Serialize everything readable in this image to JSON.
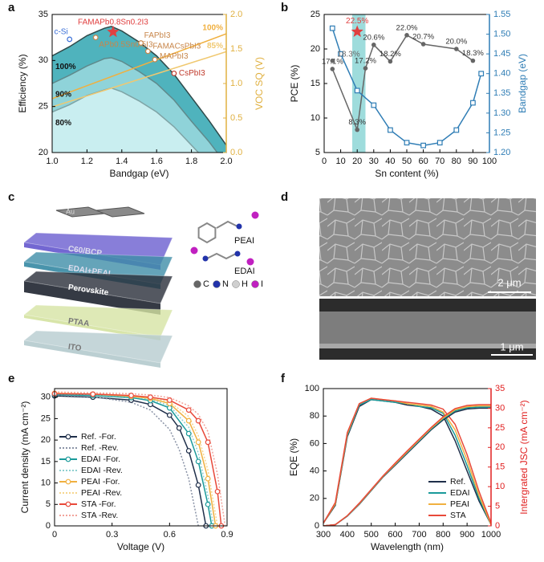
{
  "panel_labels": [
    "a",
    "b",
    "c",
    "d",
    "e",
    "f"
  ],
  "diagram": {
    "layers": [
      "Au",
      "C60/BCP",
      "EDAI+PEAI",
      "Perovskite",
      "PTAA",
      "ITO"
    ],
    "molecules": [
      "PEAI",
      "EDAI"
    ],
    "atoms": [
      "C",
      "N",
      "H",
      "I"
    ]
  },
  "micrograph": {
    "scale_bars": [
      "2 μm",
      "1 μm"
    ]
  },
  "chart_data": [
    {
      "type": "line",
      "xlabel": "Bandgap (eV)",
      "ylabel": "Efficiency (%)",
      "y2label": "VOC SQ (V)",
      "y2color": "#e0b040",
      "xlim": [
        1.0,
        2.0
      ],
      "xticks": [
        {
          "value": 1,
          "label": "1.0"
        },
        1.2,
        1.4,
        1.6,
        1.8,
        {
          "value": 2,
          "label": "2.0"
        }
      ],
      "ylim": [
        20,
        35
      ],
      "yticks": [
        20,
        25,
        30,
        35
      ],
      "y2lim": [
        0,
        2
      ],
      "y2ticks": [
        {
          "value": 0,
          "label": "0.0"
        },
        0.5,
        {
          "value": 1,
          "label": "1.0"
        },
        1.5,
        {
          "value": 2,
          "label": "2.0"
        }
      ],
      "series": [
        {
          "label": "100%",
          "color": "#2f4a4a",
          "fill": "#4fb3bd",
          "x": [
            1.0,
            1.1,
            1.2,
            1.3,
            1.34,
            1.4,
            1.5,
            1.6,
            1.7,
            1.8,
            1.9,
            2.0
          ],
          "values": [
            30.5,
            31.5,
            32.7,
            33.5,
            33.7,
            33.2,
            32.0,
            30.5,
            28.5,
            26.0,
            23.5,
            20.8
          ]
        },
        {
          "label": "90%",
          "color": "#5f8a8c",
          "fill": "#8fd3d9",
          "x": [
            1.0,
            1.1,
            1.2,
            1.3,
            1.34,
            1.4,
            1.5,
            1.6,
            1.7,
            1.8,
            1.9,
            2.0
          ],
          "values": [
            27.5,
            28.4,
            29.4,
            30.2,
            30.3,
            29.9,
            28.8,
            27.5,
            25.7,
            23.4,
            21.2,
            18.7
          ]
        },
        {
          "label": "80%",
          "color": "#7fa4a6",
          "fill": "#c9eef0",
          "x": [
            1.0,
            1.1,
            1.2,
            1.3,
            1.34,
            1.4,
            1.5,
            1.6,
            1.7,
            1.8,
            1.9,
            2.0
          ],
          "values": [
            24.4,
            25.2,
            26.2,
            26.8,
            27.0,
            26.6,
            25.6,
            24.4,
            22.8,
            20.8,
            18.8,
            16.6
          ]
        },
        {
          "label": "100%",
          "color": "#f0b040",
          "axis": "y2",
          "x": [
            1.0,
            2.0
          ],
          "values": [
            0.78,
            1.72
          ]
        },
        {
          "label": "85%",
          "color": "#f0c870",
          "axis": "y2",
          "x": [
            1.0,
            2.0
          ],
          "values": [
            0.66,
            1.46
          ]
        }
      ],
      "points": [
        {
          "label": "c-Si",
          "x": 1.1,
          "y": 32.3,
          "color": "#3a6fd8",
          "marker": "open-circle"
        },
        {
          "label": "FAMAPb0.8Sn0.2I3",
          "x": 1.35,
          "y": 33.1,
          "color": "#e04040",
          "marker": "star"
        },
        {
          "label": "APb0.5Sn0.5I3",
          "x": 1.25,
          "y": 32.5,
          "color": "#c8864a",
          "marker": "open-circle"
        },
        {
          "label": "FAPbI3",
          "x": 1.51,
          "y": 31.9,
          "color": "#c8864a",
          "marker": "open-circle"
        },
        {
          "label": "FAMACsPbI3",
          "x": 1.55,
          "y": 31.0,
          "color": "#c8864a",
          "marker": "open-circle"
        },
        {
          "label": "MAPbI3",
          "x": 1.59,
          "y": 30.1,
          "color": "#c8864a",
          "marker": "open-circle"
        },
        {
          "label": "CsPbI3",
          "x": 1.7,
          "y": 28.6,
          "color": "#c0392b",
          "marker": "open-circle"
        }
      ]
    },
    {
      "type": "line",
      "xlabel": "Sn content (%)",
      "ylabel": "PCE (%)",
      "y2label": "Bandgap (eV)",
      "y2color": "#2f7db5",
      "xlim": [
        0,
        100
      ],
      "xticks": [
        0,
        10,
        20,
        30,
        40,
        50,
        60,
        70,
        80,
        90,
        100
      ],
      "ylim": [
        5,
        25
      ],
      "yticks": [
        5,
        10,
        15,
        20,
        25
      ],
      "y2lim": [
        1.2,
        1.55
      ],
      "y2ticks": [
        {
          "value": 1.2,
          "label": "1.20"
        },
        1.25,
        {
          "value": 1.3,
          "label": "1.30"
        },
        1.35,
        {
          "value": 1.4,
          "label": "1.40"
        },
        1.45,
        {
          "value": 1.5,
          "label": "1.50"
        },
        1.55
      ],
      "highlight_band": [
        17,
        25
      ],
      "highlight_color": "#86d3d3",
      "series": [
        {
          "color": "#666666",
          "marker": "circle",
          "x": [
            5,
            20,
            25,
            30,
            40,
            50,
            60,
            80,
            90
          ],
          "values": [
            17.1,
            8.3,
            17.2,
            20.6,
            18.2,
            22.0,
            20.7,
            20.0,
            18.3
          ],
          "value_labels": [
            "17.1%",
            "8.3%",
            "17.2%",
            "20.6%",
            "18.2%",
            "22.0%",
            "20.7%",
            "20.0%",
            "18.3%"
          ]
        },
        {
          "color": "#2f7db5",
          "marker": "square",
          "axis": "y2",
          "x": [
            5,
            10,
            20,
            30,
            40,
            50,
            60,
            70,
            80,
            90,
            95
          ],
          "values": [
            1.515,
            1.45,
            1.357,
            1.32,
            1.257,
            1.225,
            1.218,
            1.225,
            1.257,
            1.326,
            1.4
          ]
        }
      ],
      "points": [
        {
          "label": "18.3%",
          "x": 5,
          "y": 18.3,
          "color": "#666666",
          "marker": "circle"
        },
        {
          "label": "22.5%",
          "x": 20,
          "y": 22.5,
          "color": "#e04040",
          "marker": "star"
        }
      ]
    },
    {
      "type": "line",
      "xlabel": "Voltage (V)",
      "ylabel": "Current density (mA cm⁻²)",
      "xlim": [
        0,
        0.9
      ],
      "xticks": [
        0,
        0.3,
        0.6,
        0.9
      ],
      "ylim": [
        0,
        32
      ],
      "yticks": [
        0,
        5,
        10,
        15,
        20,
        25,
        30
      ],
      "legend": "lower left",
      "series": [
        {
          "name": "Ref. -For.",
          "color": "#1f2f4a",
          "marker": "open-circle",
          "x": [
            0,
            0.2,
            0.4,
            0.5,
            0.6,
            0.65,
            0.7,
            0.75,
            0.79
          ],
          "values": [
            30.3,
            30.0,
            29.3,
            28.3,
            25.8,
            22.8,
            17.5,
            9.5,
            0
          ]
        },
        {
          "name": "Ref. -Rev.",
          "color": "#8a93a6",
          "dash": true,
          "x": [
            0,
            0.2,
            0.4,
            0.5,
            0.6,
            0.65,
            0.7,
            0.75
          ],
          "values": [
            30.5,
            30.1,
            28.8,
            27.0,
            22.5,
            17.8,
            11.0,
            0
          ]
        },
        {
          "name": "EDAI -For.",
          "color": "#1a9a9a",
          "marker": "open-circle",
          "x": [
            0,
            0.2,
            0.4,
            0.5,
            0.6,
            0.7,
            0.75,
            0.8,
            0.82
          ],
          "values": [
            30.6,
            30.4,
            29.9,
            29.2,
            27.5,
            21.5,
            15,
            5,
            0
          ]
        },
        {
          "name": "EDAI -Rev.",
          "color": "#8fd0d0",
          "dash": true,
          "x": [
            0,
            0.2,
            0.4,
            0.5,
            0.6,
            0.7,
            0.75,
            0.8,
            0.83
          ],
          "values": [
            30.8,
            30.6,
            30.1,
            29.5,
            28.0,
            23,
            17,
            7,
            0
          ]
        },
        {
          "name": "PEAI -For.",
          "color": "#f0b040",
          "marker": "open-circle",
          "x": [
            0,
            0.2,
            0.4,
            0.5,
            0.6,
            0.7,
            0.75,
            0.8,
            0.84
          ],
          "values": [
            30.9,
            30.7,
            30.2,
            29.7,
            28.5,
            24.5,
            19.5,
            11,
            0
          ]
        },
        {
          "name": "PEAI -Rev.",
          "color": "#f6d58e",
          "dash": true,
          "x": [
            0,
            0.2,
            0.4,
            0.5,
            0.6,
            0.7,
            0.75,
            0.8,
            0.85
          ],
          "values": [
            31.0,
            30.8,
            30.4,
            29.9,
            28.9,
            25.5,
            21,
            13,
            0
          ]
        },
        {
          "name": "STA -For.",
          "color": "#e8493a",
          "marker": "open-circle",
          "x": [
            0,
            0.2,
            0.4,
            0.5,
            0.6,
            0.7,
            0.75,
            0.8,
            0.85,
            0.87
          ],
          "values": [
            30.8,
            30.7,
            30.4,
            30.0,
            29.3,
            27.0,
            24.5,
            19.5,
            8,
            0
          ]
        },
        {
          "name": "STA -Rev.",
          "color": "#f2a39a",
          "dash": true,
          "x": [
            0,
            0.2,
            0.4,
            0.5,
            0.6,
            0.7,
            0.75,
            0.8,
            0.85,
            0.89
          ],
          "values": [
            31.2,
            31.0,
            30.8,
            30.5,
            29.9,
            28.0,
            26.0,
            22.0,
            12,
            0
          ]
        }
      ]
    },
    {
      "type": "line",
      "xlabel": "Wavelength (nm)",
      "ylabel": "EQE (%)",
      "y2label": "Intergrated JSC (mA cm⁻²)",
      "y2color": "#e02020",
      "xlim": [
        300,
        1000
      ],
      "xticks": [
        300,
        400,
        500,
        600,
        700,
        800,
        900,
        1000
      ],
      "ylim": [
        0,
        100
      ],
      "yticks": [
        0,
        20,
        40,
        60,
        80,
        100
      ],
      "y2lim": [
        0,
        35
      ],
      "y2ticks": [
        0,
        5,
        10,
        15,
        20,
        25,
        30,
        35
      ],
      "legend": "lower right",
      "series": [
        {
          "name": "Ref.",
          "color": "#1f2f4a",
          "x": [
            300,
            350,
            400,
            450,
            500,
            550,
            600,
            650,
            700,
            750,
            800,
            850,
            900,
            950,
            1000
          ],
          "values": [
            2,
            15,
            65,
            87,
            92,
            91,
            90,
            88,
            87,
            85,
            80,
            62,
            40,
            18,
            1
          ]
        },
        {
          "name": "EDAI",
          "color": "#1a9a9a",
          "x": [
            300,
            350,
            400,
            450,
            500,
            550,
            600,
            650,
            700,
            750,
            800,
            850,
            900,
            950,
            1000
          ],
          "values": [
            2,
            16,
            66,
            88,
            92,
            91,
            90,
            89,
            87,
            86,
            82,
            66,
            44,
            20,
            1
          ]
        },
        {
          "name": "PEAI",
          "color": "#f0b040",
          "x": [
            300,
            350,
            400,
            450,
            500,
            550,
            600,
            650,
            700,
            750,
            800,
            850,
            900,
            950,
            1000
          ],
          "values": [
            2,
            16,
            67,
            89,
            93,
            92,
            91,
            89,
            88,
            87,
            83,
            70,
            48,
            22,
            1
          ]
        },
        {
          "name": "STA",
          "color": "#e8493a",
          "x": [
            300,
            350,
            400,
            450,
            500,
            550,
            600,
            650,
            700,
            750,
            800,
            850,
            900,
            950,
            1000
          ],
          "values": [
            2,
            17,
            68,
            89,
            93,
            92,
            91,
            90,
            89,
            88,
            85,
            74,
            52,
            25,
            2
          ]
        },
        {
          "color": "#1f2f4a",
          "axis": "y2",
          "x": [
            300,
            350,
            400,
            450,
            500,
            550,
            600,
            650,
            700,
            750,
            800,
            850,
            900,
            950,
            1000
          ],
          "values": [
            0,
            0.3,
            2.5,
            5.5,
            9.0,
            12.5,
            15.5,
            18.5,
            21.5,
            24.5,
            27.0,
            29.0,
            29.8,
            30.0,
            30.0
          ]
        },
        {
          "color": "#1a9a9a",
          "axis": "y2",
          "x": [
            300,
            350,
            400,
            450,
            500,
            550,
            600,
            650,
            700,
            750,
            800,
            850,
            900,
            950,
            1000
          ],
          "values": [
            0,
            0.3,
            2.5,
            5.6,
            9.1,
            12.6,
            15.7,
            18.7,
            21.7,
            24.7,
            27.3,
            29.3,
            30.1,
            30.3,
            30.3
          ]
        },
        {
          "color": "#f0b040",
          "axis": "y2",
          "x": [
            300,
            350,
            400,
            450,
            500,
            550,
            600,
            650,
            700,
            750,
            800,
            850,
            900,
            950,
            1000
          ],
          "values": [
            0,
            0.3,
            2.6,
            5.7,
            9.2,
            12.7,
            15.8,
            18.9,
            21.9,
            24.9,
            27.5,
            29.6,
            30.4,
            30.6,
            30.6
          ]
        },
        {
          "color": "#e8493a",
          "axis": "y2",
          "x": [
            300,
            350,
            400,
            450,
            500,
            550,
            600,
            650,
            700,
            750,
            800,
            850,
            900,
            950,
            1000
          ],
          "values": [
            0,
            0.3,
            2.6,
            5.8,
            9.3,
            12.8,
            16.0,
            19.1,
            22.1,
            25.1,
            27.8,
            29.9,
            30.7,
            30.9,
            30.9
          ]
        }
      ]
    }
  ]
}
